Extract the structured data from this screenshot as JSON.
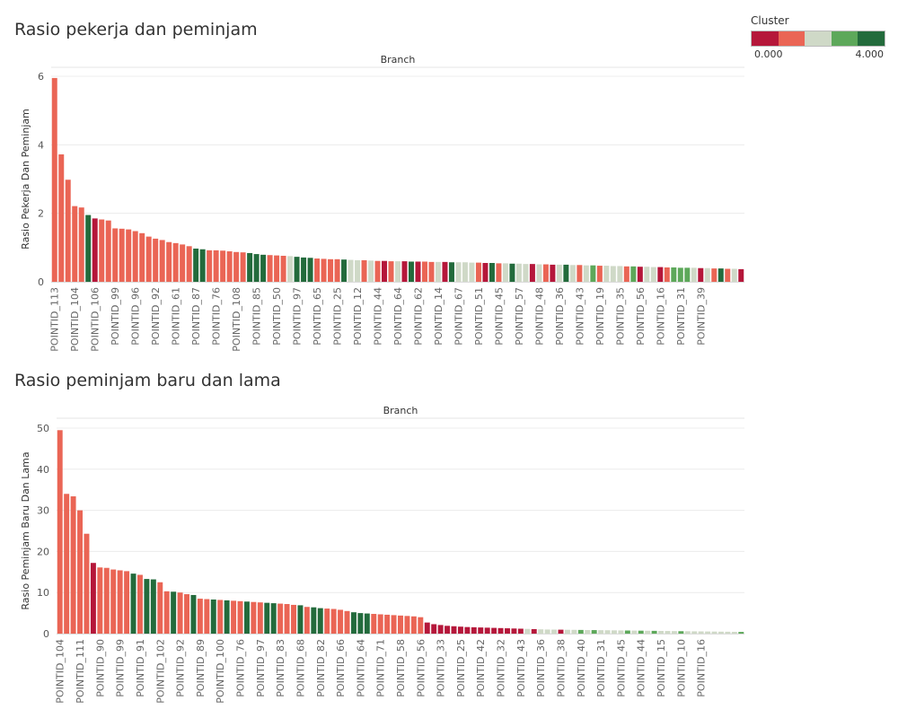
{
  "legend": {
    "title": "Cluster",
    "min_label": "0.000",
    "max_label": "4.000",
    "colors": [
      "#b5173a",
      "#ea6555",
      "#cfd9c7",
      "#5da85a",
      "#236b3c"
    ]
  },
  "chart_data": [
    {
      "type": "bar",
      "title": "Rasio pekerja dan peminjam",
      "column_header": "Branch",
      "ylabel": "Rasio Pekerja Dan Peminjam",
      "ylim": [
        0,
        6
      ],
      "yticks": [
        0,
        2,
        4,
        6
      ],
      "grid": true,
      "tick_labels": [
        "POINTID_113",
        "POINTID_104",
        "POINTID_106",
        "POINTID_99",
        "POINTID_96",
        "POINTID_92",
        "POINTID_61",
        "POINTID_87",
        "POINTID_76",
        "POINTID_108",
        "POINTID_85",
        "POINTID_50",
        "POINTID_97",
        "POINTID_65",
        "POINTID_25",
        "POINTID_12",
        "POINTID_44",
        "POINTID_64",
        "POINTID_62",
        "POINTID_14",
        "POINTID_67",
        "POINTID_51",
        "POINTID_45",
        "POINTID_57",
        "POINTID_48",
        "POINTID_36",
        "POINTID_43",
        "POINTID_19",
        "POINTID_35",
        "POINTID_56",
        "POINTID_16",
        "POINTID_31",
        "POINTID_39"
      ],
      "label_every": 3,
      "values": [
        5.95,
        3.72,
        2.98,
        2.21,
        2.17,
        1.95,
        1.85,
        1.82,
        1.79,
        1.56,
        1.55,
        1.53,
        1.48,
        1.42,
        1.32,
        1.26,
        1.22,
        1.16,
        1.13,
        1.09,
        1.04,
        0.97,
        0.95,
        0.92,
        0.92,
        0.91,
        0.89,
        0.87,
        0.86,
        0.84,
        0.81,
        0.79,
        0.78,
        0.77,
        0.76,
        0.75,
        0.73,
        0.71,
        0.7,
        0.68,
        0.67,
        0.66,
        0.66,
        0.65,
        0.64,
        0.63,
        0.63,
        0.62,
        0.61,
        0.61,
        0.6,
        0.6,
        0.6,
        0.59,
        0.59,
        0.59,
        0.58,
        0.58,
        0.58,
        0.57,
        0.57,
        0.57,
        0.56,
        0.56,
        0.55,
        0.55,
        0.54,
        0.54,
        0.53,
        0.53,
        0.52,
        0.52,
        0.51,
        0.51,
        0.5,
        0.5,
        0.5,
        0.49,
        0.49,
        0.48,
        0.48,
        0.47,
        0.47,
        0.46,
        0.46,
        0.45,
        0.45,
        0.44,
        0.44,
        0.43,
        0.43,
        0.42,
        0.42,
        0.41,
        0.41,
        0.41,
        0.4,
        0.4,
        0.39,
        0.39,
        0.38,
        0.38,
        0.37
      ],
      "clusters": [
        1,
        1,
        1,
        1,
        1,
        4,
        0,
        1,
        1,
        1,
        1,
        1,
        1,
        1,
        1,
        1,
        1,
        1,
        1,
        1,
        1,
        4,
        4,
        1,
        1,
        1,
        1,
        1,
        1,
        4,
        4,
        4,
        1,
        1,
        1,
        2,
        4,
        4,
        4,
        1,
        1,
        1,
        1,
        4,
        2,
        2,
        1,
        2,
        1,
        0,
        1,
        2,
        0,
        4,
        0,
        1,
        1,
        2,
        0,
        4,
        2,
        2,
        2,
        1,
        0,
        4,
        1,
        2,
        4,
        2,
        2,
        0,
        2,
        1,
        0,
        2,
        4,
        2,
        1,
        2,
        3,
        1,
        2,
        2,
        2,
        1,
        3,
        0,
        2,
        2,
        0,
        1,
        3,
        3,
        3,
        2,
        0,
        2,
        1,
        4,
        1,
        2,
        0
      ]
    },
    {
      "type": "bar",
      "title": "Rasio peminjam baru dan lama",
      "column_header": "Branch",
      "ylabel": "Rasio Peminjam Baru Dan Lama",
      "ylim": [
        0,
        50
      ],
      "yticks": [
        0,
        10,
        20,
        30,
        40,
        50
      ],
      "grid": true,
      "tick_labels": [
        "POINTID_104",
        "POINTID_111",
        "POINTID_90",
        "POINTID_99",
        "POINTID_91",
        "POINTID_102",
        "POINTID_92",
        "POINTID_89",
        "POINTID_100",
        "POINTID_76",
        "POINTID_97",
        "POINTID_83",
        "POINTID_68",
        "POINTID_82",
        "POINTID_66",
        "POINTID_64",
        "POINTID_71",
        "POINTID_58",
        "POINTID_56",
        "POINTID_33",
        "POINTID_25",
        "POINTID_42",
        "POINTID_32",
        "POINTID_43",
        "POINTID_36",
        "POINTID_38",
        "POINTID_40",
        "POINTID_31",
        "POINTID_45",
        "POINTID_44",
        "POINTID_15",
        "POINTID_10",
        "POINTID_16"
      ],
      "label_every": 3,
      "values": [
        49.5,
        34.0,
        33.4,
        30.0,
        24.3,
        17.2,
        16.1,
        16.0,
        15.6,
        15.4,
        15.2,
        14.6,
        14.3,
        13.3,
        13.2,
        12.5,
        10.3,
        10.2,
        10.0,
        9.6,
        9.4,
        8.5,
        8.4,
        8.3,
        8.2,
        8.1,
        8.0,
        7.9,
        7.8,
        7.7,
        7.6,
        7.5,
        7.4,
        7.3,
        7.2,
        7.0,
        6.9,
        6.5,
        6.4,
        6.2,
        6.1,
        6.0,
        5.8,
        5.5,
        5.2,
        5.0,
        4.9,
        4.8,
        4.7,
        4.6,
        4.5,
        4.4,
        4.3,
        4.2,
        4.0,
        2.7,
        2.3,
        2.1,
        1.9,
        1.8,
        1.7,
        1.6,
        1.55,
        1.5,
        1.45,
        1.4,
        1.35,
        1.3,
        1.25,
        1.2,
        1.15,
        1.1,
        1.05,
        1.0,
        0.98,
        0.96,
        0.94,
        0.92,
        0.9,
        0.88,
        0.86,
        0.84,
        0.82,
        0.8,
        0.78,
        0.76,
        0.74,
        0.72,
        0.7,
        0.68,
        0.66,
        0.64,
        0.62,
        0.6,
        0.58,
        0.56,
        0.54,
        0.52,
        0.5,
        0.48,
        0.46,
        0.44,
        0.42
      ],
      "clusters": [
        1,
        1,
        1,
        1,
        1,
        0,
        1,
        1,
        1,
        1,
        1,
        4,
        1,
        4,
        4,
        1,
        1,
        4,
        1,
        1,
        4,
        1,
        1,
        4,
        1,
        4,
        1,
        1,
        4,
        1,
        1,
        4,
        4,
        1,
        1,
        1,
        4,
        1,
        4,
        4,
        1,
        1,
        1,
        1,
        4,
        4,
        4,
        1,
        1,
        1,
        1,
        1,
        1,
        1,
        1,
        0,
        0,
        0,
        0,
        0,
        0,
        0,
        0,
        0,
        0,
        0,
        0,
        0,
        0,
        0,
        2,
        0,
        2,
        2,
        2,
        0,
        2,
        2,
        3,
        2,
        3,
        2,
        2,
        2,
        2,
        3,
        2,
        3,
        2,
        3,
        2,
        2,
        2,
        3,
        2,
        2,
        2,
        2,
        2,
        2,
        2,
        2,
        3
      ]
    }
  ]
}
